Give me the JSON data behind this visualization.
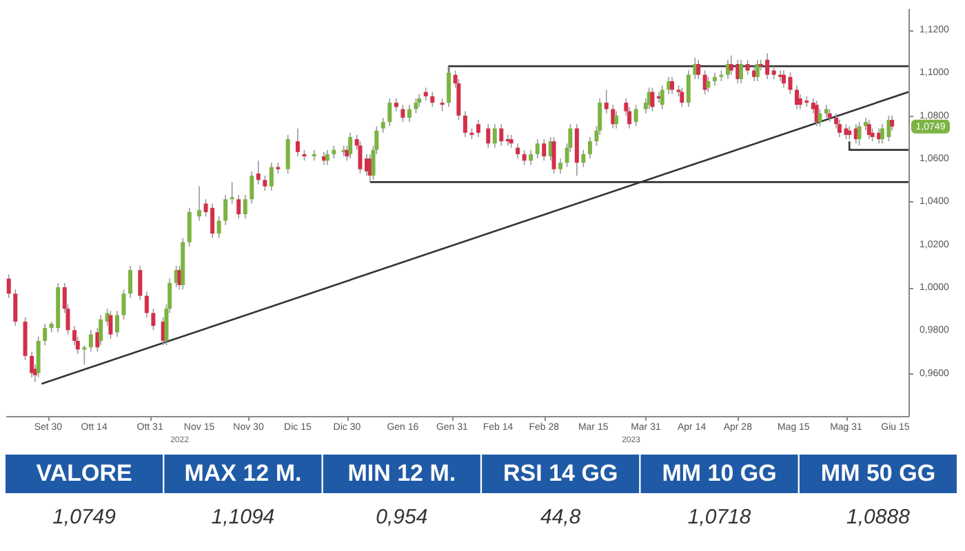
{
  "chart_data": [
    {
      "type": "candlestick",
      "x": [
        "2022-09-18",
        "2022-09-20",
        "2022-09-23",
        "2022-09-25",
        "2022-09-26",
        "2022-09-27",
        "2022-09-29",
        "2022-10-01",
        "2022-10-03",
        "2022-10-05",
        "2022-10-06",
        "2022-10-08",
        "2022-10-09",
        "2022-10-11",
        "2022-10-13",
        "2022-10-15",
        "2022-10-16",
        "2022-10-18",
        "2022-10-19",
        "2022-10-21",
        "2022-10-23",
        "2022-10-25",
        "2022-10-28",
        "2022-10-30",
        "2022-11-01",
        "2022-11-04",
        "2022-11-05",
        "2022-11-06",
        "2022-11-08",
        "2022-11-09",
        "2022-11-10",
        "2022-11-12",
        "2022-11-15",
        "2022-11-17",
        "2022-11-19",
        "2022-11-21",
        "2022-11-23",
        "2022-11-25",
        "2022-11-27",
        "2022-11-29",
        "2022-12-01",
        "2022-12-03",
        "2022-12-05",
        "2022-12-07",
        "2022-12-09",
        "2022-12-12",
        "2022-12-15",
        "2022-12-17",
        "2022-12-20",
        "2022-12-23",
        "2022-12-24",
        "2022-12-26",
        "2022-12-29",
        "2022-12-30",
        "2022-12-31",
        "2023-01-02",
        "2023-01-03",
        "2023-01-05",
        "2023-01-06",
        "2023-01-07",
        "2023-01-08",
        "2023-01-10",
        "2023-01-12",
        "2023-01-14",
        "2023-01-16",
        "2023-01-18",
        "2023-01-20",
        "2023-01-21",
        "2023-01-23",
        "2023-01-25",
        "2023-01-28",
        "2023-01-30",
        "2023-02-01",
        "2023-02-02",
        "2023-02-04",
        "2023-02-06",
        "2023-02-08",
        "2023-02-11",
        "2023-02-13",
        "2023-02-15",
        "2023-02-17",
        "2023-02-18",
        "2023-02-20",
        "2023-02-22",
        "2023-02-24",
        "2023-02-26",
        "2023-02-28",
        "2023-03-02",
        "2023-03-03",
        "2023-03-05",
        "2023-03-07",
        "2023-03-08",
        "2023-03-10",
        "2023-03-12",
        "2023-03-14",
        "2023-03-16",
        "2023-03-17",
        "2023-03-19",
        "2023-03-21",
        "2023-03-22",
        "2023-03-25",
        "2023-03-26",
        "2023-03-28",
        "2023-03-31",
        "2023-04-01",
        "2023-04-02",
        "2023-04-04",
        "2023-04-05",
        "2023-04-07",
        "2023-04-08",
        "2023-04-10",
        "2023-04-11",
        "2023-04-13",
        "2023-04-15",
        "2023-04-16",
        "2023-04-18",
        "2023-04-19",
        "2023-04-21",
        "2023-04-23",
        "2023-04-25",
        "2023-04-26",
        "2023-04-28",
        "2023-04-29",
        "2023-05-01",
        "2023-05-03",
        "2023-05-04",
        "2023-05-05",
        "2023-05-07",
        "2023-05-09",
        "2023-05-11",
        "2023-05-12",
        "2023-05-14",
        "2023-05-16",
        "2023-05-17",
        "2023-05-19",
        "2023-05-21",
        "2023-05-22",
        "2023-05-23",
        "2023-05-25",
        "2023-05-26",
        "2023-05-28",
        "2023-05-29",
        "2023-05-31",
        "2023-06-01",
        "2023-06-03",
        "2023-06-04",
        "2023-06-06",
        "2023-06-07",
        "2023-06-08",
        "2023-06-10",
        "2023-06-11",
        "2023-06-13",
        "2023-06-14"
      ],
      "ohlc": [
        [
          1.004,
          1.006,
          0.995,
          0.997
        ],
        [
          0.997,
          0.999,
          0.982,
          0.984
        ],
        [
          0.984,
          0.986,
          0.966,
          0.968
        ],
        [
          0.968,
          0.97,
          0.958,
          0.96
        ],
        [
          0.962,
          0.964,
          0.956,
          0.959
        ],
        [
          0.96,
          0.977,
          0.958,
          0.975
        ],
        [
          0.975,
          0.983,
          0.973,
          0.981
        ],
        [
          0.981,
          0.984,
          0.979,
          0.983
        ],
        [
          0.981,
          1.002,
          0.979,
          1.0
        ],
        [
          1.0,
          1.002,
          0.988,
          0.99
        ],
        [
          0.99,
          0.992,
          0.978,
          0.98
        ],
        [
          0.98,
          0.982,
          0.973,
          0.975
        ],
        [
          0.975,
          0.977,
          0.969,
          0.971
        ],
        [
          0.971,
          0.973,
          0.964,
          0.972
        ],
        [
          0.972,
          0.98,
          0.97,
          0.978
        ],
        [
          0.979,
          0.981,
          0.97,
          0.972
        ],
        [
          0.975,
          0.987,
          0.973,
          0.985
        ],
        [
          0.984,
          0.99,
          0.982,
          0.988
        ],
        [
          0.987,
          0.989,
          0.976,
          0.978
        ],
        [
          0.979,
          0.989,
          0.977,
          0.987
        ],
        [
          0.987,
          0.999,
          0.985,
          0.997
        ],
        [
          0.997,
          1.01,
          0.995,
          1.008
        ],
        [
          1.008,
          1.01,
          0.994,
          0.996
        ],
        [
          0.996,
          0.998,
          0.986,
          0.988
        ],
        [
          0.988,
          0.99,
          0.98,
          0.982
        ],
        [
          0.984,
          0.986,
          0.973,
          0.975
        ],
        [
          0.975,
          0.992,
          0.973,
          0.99
        ],
        [
          0.99,
          1.004,
          0.988,
          1.002
        ],
        [
          1.002,
          1.01,
          1.0,
          1.008
        ],
        [
          1.008,
          1.01,
          0.999,
          1.001
        ],
        [
          1.001,
          1.023,
          0.999,
          1.021
        ],
        [
          1.021,
          1.037,
          1.019,
          1.035
        ],
        [
          1.033,
          1.047,
          1.031,
          1.036
        ],
        [
          1.039,
          1.041,
          1.033,
          1.035
        ],
        [
          1.037,
          1.039,
          1.023,
          1.025
        ],
        [
          1.025,
          1.033,
          1.023,
          1.031
        ],
        [
          1.031,
          1.043,
          1.029,
          1.041
        ],
        [
          1.041,
          1.049,
          1.039,
          1.042
        ],
        [
          1.041,
          1.043,
          1.032,
          1.034
        ],
        [
          1.034,
          1.043,
          1.032,
          1.041
        ],
        [
          1.041,
          1.054,
          1.039,
          1.052
        ],
        [
          1.053,
          1.059,
          1.048,
          1.05
        ],
        [
          1.05,
          1.052,
          1.045,
          1.047
        ],
        [
          1.047,
          1.058,
          1.045,
          1.056
        ],
        [
          1.056,
          1.058,
          1.053,
          1.055
        ],
        [
          1.055,
          1.071,
          1.053,
          1.069
        ],
        [
          1.068,
          1.074,
          1.061,
          1.063
        ],
        [
          1.062,
          1.064,
          1.059,
          1.061
        ],
        [
          1.061,
          1.064,
          1.059,
          1.062
        ],
        [
          1.061,
          1.063,
          1.057,
          1.059
        ],
        [
          1.059,
          1.064,
          1.057,
          1.062
        ],
        [
          1.062,
          1.066,
          1.06,
          1.064
        ],
        [
          1.063,
          1.066,
          1.061,
          1.064
        ],
        [
          1.064,
          1.066,
          1.059,
          1.061
        ],
        [
          1.062,
          1.072,
          1.06,
          1.07
        ],
        [
          1.069,
          1.071,
          1.064,
          1.066
        ],
        [
          1.066,
          1.068,
          1.053,
          1.055
        ],
        [
          1.06,
          1.062,
          1.052,
          1.054
        ],
        [
          1.06,
          1.062,
          1.049,
          1.052
        ],
        [
          1.052,
          1.066,
          1.05,
          1.064
        ],
        [
          1.064,
          1.075,
          1.062,
          1.073
        ],
        [
          1.074,
          1.079,
          1.072,
          1.077
        ],
        [
          1.077,
          1.088,
          1.075,
          1.086
        ],
        [
          1.086,
          1.088,
          1.082,
          1.084
        ],
        [
          1.083,
          1.085,
          1.077,
          1.079
        ],
        [
          1.079,
          1.085,
          1.077,
          1.083
        ],
        [
          1.083,
          1.088,
          1.081,
          1.086
        ],
        [
          1.086,
          1.09,
          1.084,
          1.088
        ],
        [
          1.091,
          1.093,
          1.087,
          1.089
        ],
        [
          1.089,
          1.091,
          1.084,
          1.086
        ],
        [
          1.086,
          1.088,
          1.082,
          1.085
        ],
        [
          1.086,
          1.103,
          1.084,
          1.1
        ],
        [
          1.099,
          1.101,
          1.093,
          1.095
        ],
        [
          1.095,
          1.097,
          1.078,
          1.08
        ],
        [
          1.08,
          1.082,
          1.07,
          1.072
        ],
        [
          1.072,
          1.074,
          1.069,
          1.071
        ],
        [
          1.076,
          1.078,
          1.07,
          1.072
        ],
        [
          1.074,
          1.076,
          1.065,
          1.067
        ],
        [
          1.067,
          1.076,
          1.065,
          1.074
        ],
        [
          1.074,
          1.076,
          1.066,
          1.068
        ],
        [
          1.069,
          1.071,
          1.066,
          1.068
        ],
        [
          1.069,
          1.071,
          1.065,
          1.067
        ],
        [
          1.065,
          1.067,
          1.06,
          1.062
        ],
        [
          1.062,
          1.064,
          1.057,
          1.059
        ],
        [
          1.059,
          1.064,
          1.057,
          1.062
        ],
        [
          1.062,
          1.069,
          1.06,
          1.067
        ],
        [
          1.067,
          1.069,
          1.059,
          1.061
        ],
        [
          1.061,
          1.07,
          1.059,
          1.068
        ],
        [
          1.068,
          1.07,
          1.053,
          1.055
        ],
        [
          1.055,
          1.06,
          1.053,
          1.058
        ],
        [
          1.058,
          1.067,
          1.056,
          1.065
        ],
        [
          1.065,
          1.076,
          1.063,
          1.074
        ],
        [
          1.074,
          1.076,
          1.052,
          1.058
        ],
        [
          1.058,
          1.064,
          1.056,
          1.062
        ],
        [
          1.062,
          1.07,
          1.06,
          1.068
        ],
        [
          1.068,
          1.075,
          1.066,
          1.073
        ],
        [
          1.073,
          1.088,
          1.071,
          1.086
        ],
        [
          1.086,
          1.092,
          1.081,
          1.083
        ],
        [
          1.083,
          1.085,
          1.074,
          1.076
        ],
        [
          1.076,
          1.082,
          1.074,
          1.08
        ],
        [
          1.086,
          1.088,
          1.08,
          1.082
        ],
        [
          1.082,
          1.084,
          1.074,
          1.076
        ],
        [
          1.077,
          1.085,
          1.075,
          1.083
        ],
        [
          1.083,
          1.088,
          1.081,
          1.086
        ],
        [
          1.085,
          1.093,
          1.083,
          1.091
        ],
        [
          1.091,
          1.093,
          1.082,
          1.084
        ],
        [
          1.089,
          1.091,
          1.086,
          1.088
        ],
        [
          1.085,
          1.094,
          1.083,
          1.092
        ],
        [
          1.092,
          1.098,
          1.09,
          1.096
        ],
        [
          1.096,
          1.098,
          1.09,
          1.092
        ],
        [
          1.092,
          1.094,
          1.089,
          1.091
        ],
        [
          1.091,
          1.093,
          1.084,
          1.086
        ],
        [
          1.086,
          1.101,
          1.084,
          1.099
        ],
        [
          1.099,
          1.107,
          1.097,
          1.104
        ],
        [
          1.104,
          1.106,
          1.097,
          1.099
        ],
        [
          1.099,
          1.101,
          1.09,
          1.092
        ],
        [
          1.093,
          1.098,
          1.091,
          1.096
        ],
        [
          1.096,
          1.1,
          1.094,
          1.098
        ],
        [
          1.098,
          1.101,
          1.096,
          1.099
        ],
        [
          1.099,
          1.106,
          1.097,
          1.104
        ],
        [
          1.104,
          1.108,
          1.099,
          1.101
        ],
        [
          1.104,
          1.106,
          1.095,
          1.097
        ],
        [
          1.097,
          1.106,
          1.095,
          1.104
        ],
        [
          1.104,
          1.106,
          1.099,
          1.101
        ],
        [
          1.101,
          1.103,
          1.096,
          1.098
        ],
        [
          1.098,
          1.106,
          1.096,
          1.104
        ],
        [
          1.104,
          1.106,
          1.101,
          1.103
        ],
        [
          1.106,
          1.109,
          1.097,
          1.099
        ],
        [
          1.101,
          1.103,
          1.097,
          1.099
        ],
        [
          1.099,
          1.101,
          1.096,
          1.098
        ],
        [
          1.099,
          1.101,
          1.093,
          1.095
        ],
        [
          1.098,
          1.1,
          1.09,
          1.092
        ],
        [
          1.092,
          1.094,
          1.083,
          1.085
        ],
        [
          1.088,
          1.09,
          1.083,
          1.085
        ],
        [
          1.087,
          1.089,
          1.084,
          1.086
        ],
        [
          1.086,
          1.088,
          1.081,
          1.083
        ],
        [
          1.085,
          1.087,
          1.075,
          1.077
        ],
        [
          1.077,
          1.083,
          1.075,
          1.081
        ],
        [
          1.081,
          1.085,
          1.079,
          1.083
        ],
        [
          1.081,
          1.083,
          1.077,
          1.079
        ],
        [
          1.079,
          1.081,
          1.074,
          1.076
        ],
        [
          1.076,
          1.078,
          1.07,
          1.072
        ],
        [
          1.074,
          1.076,
          1.069,
          1.071
        ],
        [
          1.073,
          1.075,
          1.069,
          1.071
        ],
        [
          1.074,
          1.076,
          1.067,
          1.069
        ],
        [
          1.069,
          1.077,
          1.066,
          1.075
        ],
        [
          1.075,
          1.079,
          1.073,
          1.077
        ],
        [
          1.076,
          1.078,
          1.069,
          1.071
        ],
        [
          1.072,
          1.074,
          1.068,
          1.07
        ],
        [
          1.072,
          1.074,
          1.067,
          1.069
        ],
        [
          1.069,
          1.076,
          1.067,
          1.074
        ],
        [
          1.07,
          1.08,
          1.068,
          1.078
        ],
        [
          1.078,
          1.08,
          1.073,
          1.0749
        ]
      ],
      "series": [
        {
          "type": "line",
          "color": "#333333",
          "x": [
            "2022-09-28",
            "2023-06-19"
          ],
          "values": [
            0.955,
            1.091
          ]
        },
        {
          "type": "line",
          "color": "#333333",
          "x": [
            "2023-01-30",
            "2023-01-30",
            "2023-06-19"
          ],
          "values": [
            1.1,
            1.103,
            1.103
          ]
        },
        {
          "type": "line",
          "color": "#333333",
          "x": [
            "2023-01-06",
            "2023-06-19"
          ],
          "values": [
            1.049,
            1.049
          ]
        },
        {
          "type": "line",
          "color": "#333333",
          "x": [
            "2023-06-01",
            "2023-06-01",
            "2023-06-19"
          ],
          "values": [
            1.068,
            1.064,
            1.064
          ]
        }
      ],
      "xlim": [
        "2022-09-17",
        "2023-06-19"
      ],
      "xticks": [
        {
          "value": "2022-09-30",
          "label": "Set 30"
        },
        {
          "value": "2022-10-14",
          "label": "Ott 14"
        },
        {
          "value": "2022-10-31",
          "label": "Ott 31"
        },
        {
          "value": "2022-11-15",
          "label": "Nov 15"
        },
        {
          "value": "2022-11-30",
          "label": "Nov 30"
        },
        {
          "value": "2022-12-15",
          "label": "Dic 15"
        },
        {
          "value": "2022-12-30",
          "label": "Dic 30"
        },
        {
          "value": "2023-01-16",
          "label": "Gen 16"
        },
        {
          "value": "2023-01-31",
          "label": "Gen 31"
        },
        {
          "value": "2023-02-14",
          "label": "Feb 14"
        },
        {
          "value": "2023-02-28",
          "label": "Feb 28"
        },
        {
          "value": "2023-03-15",
          "label": "Mar 15"
        },
        {
          "value": "2023-03-31",
          "label": "Mar 31"
        },
        {
          "value": "2023-04-14",
          "label": "Apr 14"
        },
        {
          "value": "2023-04-28",
          "label": "Apr 28"
        },
        {
          "value": "2023-05-15",
          "label": "Mag 15"
        },
        {
          "value": "2023-05-31",
          "label": "Mag 31"
        },
        {
          "value": "2023-06-15",
          "label": "Giu 15"
        }
      ],
      "ylim": [
        0.94,
        1.13
      ],
      "yticks": [
        {
          "value": 0.96,
          "label": "0,9600"
        },
        {
          "value": 0.98,
          "label": "0,9800"
        },
        {
          "value": 1.0,
          "label": "1,0000"
        },
        {
          "value": 1.02,
          "label": "1,0200"
        },
        {
          "value": 1.04,
          "label": "1,0400"
        },
        {
          "value": 1.06,
          "label": "1,0600"
        },
        {
          "value": 1.08,
          "label": "1,0800"
        },
        {
          "value": 1.1,
          "label": "1,1000"
        },
        {
          "value": 1.12,
          "label": "1,1200"
        }
      ],
      "annotations": [
        "2022",
        "2023",
        "1,0749"
      ]
    },
    {
      "type": "other",
      "color": "#1f5aa6",
      "categories": [
        "VALORE",
        "MAX 12 M.",
        "MIN 12 M.",
        "RSI 14 GG",
        "MM 10 GG",
        "MM 50 GG"
      ],
      "value_labels": [
        "1,0749",
        "1,1094",
        "0,954",
        "44,8",
        "1,0718",
        "1,0888"
      ]
    }
  ]
}
